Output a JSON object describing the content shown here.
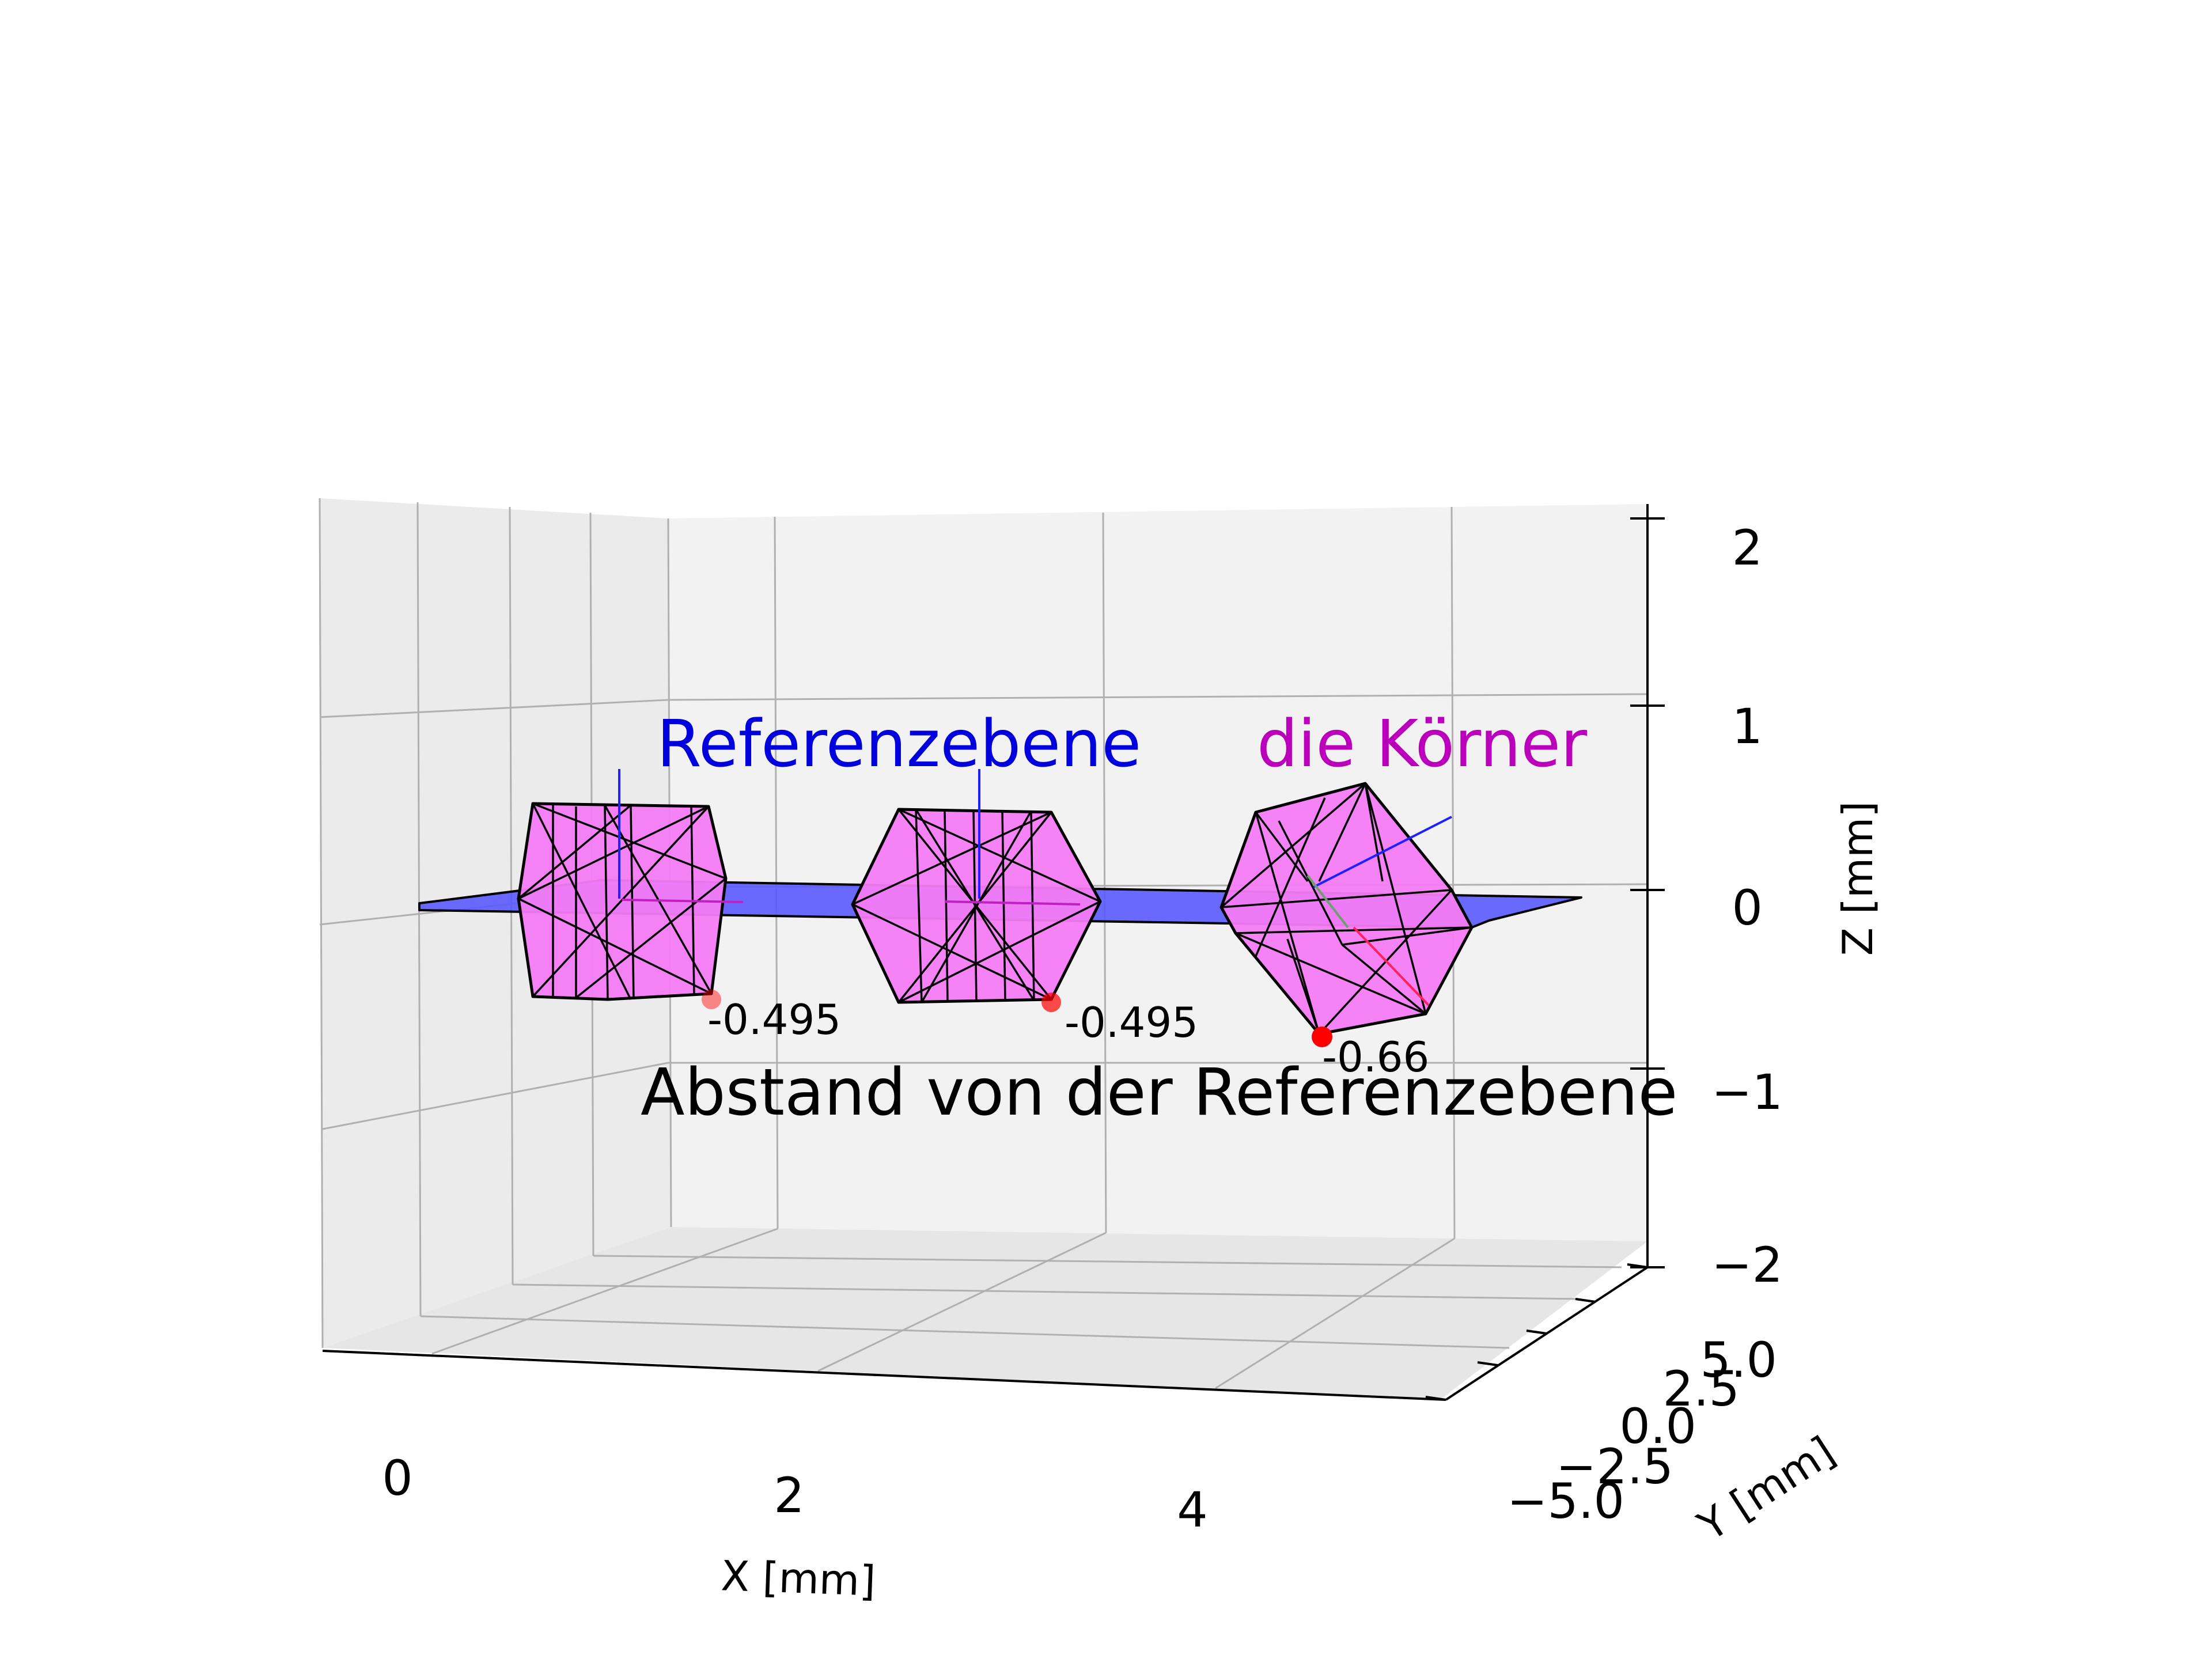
{
  "chart_data": {
    "type": "3d-wireframe",
    "xlabel": "X  [mm]",
    "ylabel": "Y  [mm]",
    "zlabel": "Z  [mm]",
    "x_ticks": [
      "0",
      "2",
      "4"
    ],
    "y_ticks": [
      "−5.0",
      "−2.5",
      "0.0",
      "2.5",
      "5.0"
    ],
    "z_ticks": [
      "−2",
      "−1",
      "0",
      "1",
      "2"
    ],
    "xlim": [
      -0.6,
      5.3
    ],
    "ylim": [
      -5.0,
      5.0
    ],
    "zlim": [
      -2,
      2
    ],
    "series": [
      {
        "name": "Referenzebene",
        "shape": "plane",
        "z": 0,
        "color": "#0000ff"
      },
      {
        "name": "die Körner",
        "shape": "polyhedron",
        "count": 3,
        "color": "#ff00ff"
      }
    ],
    "grains": [
      {
        "x": 0.9,
        "distance": "-0.495"
      },
      {
        "x": 2.7,
        "distance": "-0.495"
      },
      {
        "x": 4.6,
        "distance": "-0.66"
      }
    ],
    "labels": {
      "plane": "Referenzebene",
      "grains": "die Körner",
      "distance": "Abstand von der Referenzebene"
    },
    "colors": {
      "plane": "#5a5aff",
      "plane_label": "#0000dd",
      "grain_fill": "#f67cf6",
      "grain_label": "#bb00bb",
      "point": "#ff0000",
      "grid": "#b0b0b0",
      "pane": "#f2f2f2"
    }
  }
}
